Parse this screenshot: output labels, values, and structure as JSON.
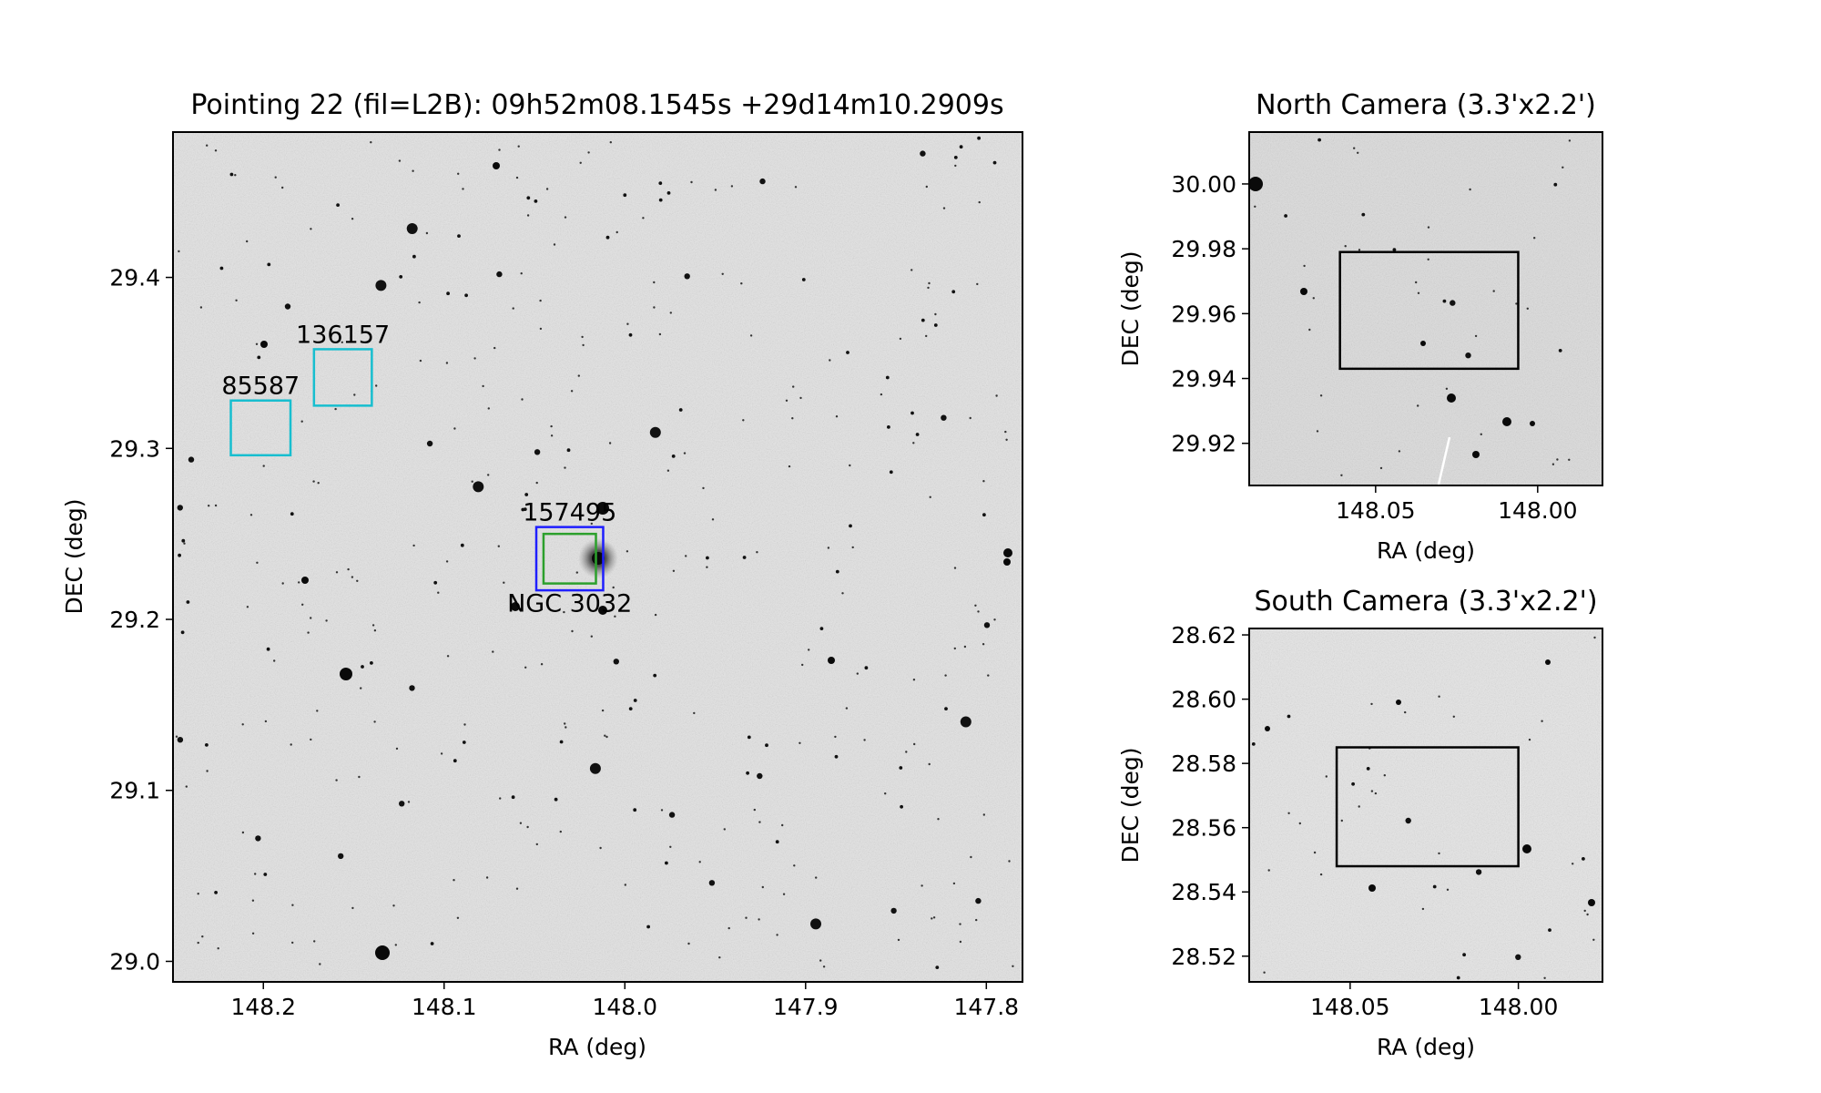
{
  "colors": {
    "background": "#ffffff",
    "sky": "#e3e3e3",
    "cyan_box": "#17becf",
    "blue_box": "#1f1fff",
    "green_box": "#2ca02c",
    "black_box": "#000000"
  },
  "chart_data": [
    {
      "id": "main",
      "type": "image",
      "title": "Pointing 22 (fil=L2B): 09h52m08.1545s +29d14m10.2909s",
      "xlabel": "RA (deg)",
      "ylabel": "DEC (deg)",
      "xlim": [
        148.25,
        147.78
      ],
      "ylim": [
        28.988,
        29.485
      ],
      "xticks": [
        {
          "value": 148.2,
          "label": "148.2"
        },
        {
          "value": 148.1,
          "label": "148.1"
        },
        {
          "value": 148.0,
          "label": "148.0"
        },
        {
          "value": 147.9,
          "label": "147.9"
        },
        {
          "value": 147.8,
          "label": "147.8"
        }
      ],
      "yticks": [
        {
          "value": 29.4,
          "label": "29.4"
        },
        {
          "value": 29.3,
          "label": "29.3"
        },
        {
          "value": 29.2,
          "label": "29.2"
        },
        {
          "value": 29.1,
          "label": "29.1"
        },
        {
          "value": 29.0,
          "label": "29.0"
        }
      ],
      "boxes": [
        {
          "label": "85587",
          "ra": [
            148.218,
            148.185
          ],
          "dec": [
            29.296,
            29.328
          ],
          "color": "cyan",
          "label_pos": "above"
        },
        {
          "label": "136157",
          "ra": [
            148.172,
            148.14
          ],
          "dec": [
            29.325,
            29.358
          ],
          "color": "cyan",
          "label_pos": "above"
        },
        {
          "label": "157495",
          "ra": [
            148.049,
            148.012
          ],
          "dec": [
            29.217,
            29.254
          ],
          "color": "blue",
          "label_pos": "above"
        },
        {
          "label": "NGC 3032",
          "ra": [
            148.045,
            148.016
          ],
          "dec": [
            29.221,
            29.25
          ],
          "color": "green",
          "label_pos": "below"
        }
      ]
    },
    {
      "id": "north",
      "type": "image",
      "title": "North Camera (3.3'x2.2')",
      "xlabel": "RA (deg)",
      "ylabel": "DEC (deg)",
      "xlim": [
        148.089,
        147.98
      ],
      "ylim": [
        29.907,
        30.016
      ],
      "xticks": [
        {
          "value": 148.05,
          "label": "148.05"
        },
        {
          "value": 148.0,
          "label": "148.00"
        }
      ],
      "yticks": [
        {
          "value": 30.0,
          "label": "30.00"
        },
        {
          "value": 29.98,
          "label": "29.98"
        },
        {
          "value": 29.96,
          "label": "29.96"
        },
        {
          "value": 29.94,
          "label": "29.94"
        },
        {
          "value": 29.92,
          "label": "29.92"
        }
      ],
      "boxes": [
        {
          "label": "",
          "ra": [
            148.061,
            148.006
          ],
          "dec": [
            29.943,
            29.979
          ],
          "color": "black"
        }
      ]
    },
    {
      "id": "south",
      "type": "image",
      "title": "South Camera (3.3'x2.2')",
      "xlabel": "RA (deg)",
      "ylabel": "DEC (deg)",
      "xlim": [
        148.08,
        147.975
      ],
      "ylim": [
        28.512,
        28.622
      ],
      "xticks": [
        {
          "value": 148.05,
          "label": "148.05"
        },
        {
          "value": 148.0,
          "label": "148.00"
        }
      ],
      "yticks": [
        {
          "value": 28.62,
          "label": "28.62"
        },
        {
          "value": 28.6,
          "label": "28.60"
        },
        {
          "value": 28.58,
          "label": "28.58"
        },
        {
          "value": 28.56,
          "label": "28.56"
        },
        {
          "value": 28.54,
          "label": "28.54"
        },
        {
          "value": 28.52,
          "label": "28.52"
        }
      ],
      "boxes": [
        {
          "label": "",
          "ra": [
            148.054,
            148.0
          ],
          "dec": [
            28.548,
            28.585
          ],
          "color": "black"
        }
      ]
    }
  ]
}
